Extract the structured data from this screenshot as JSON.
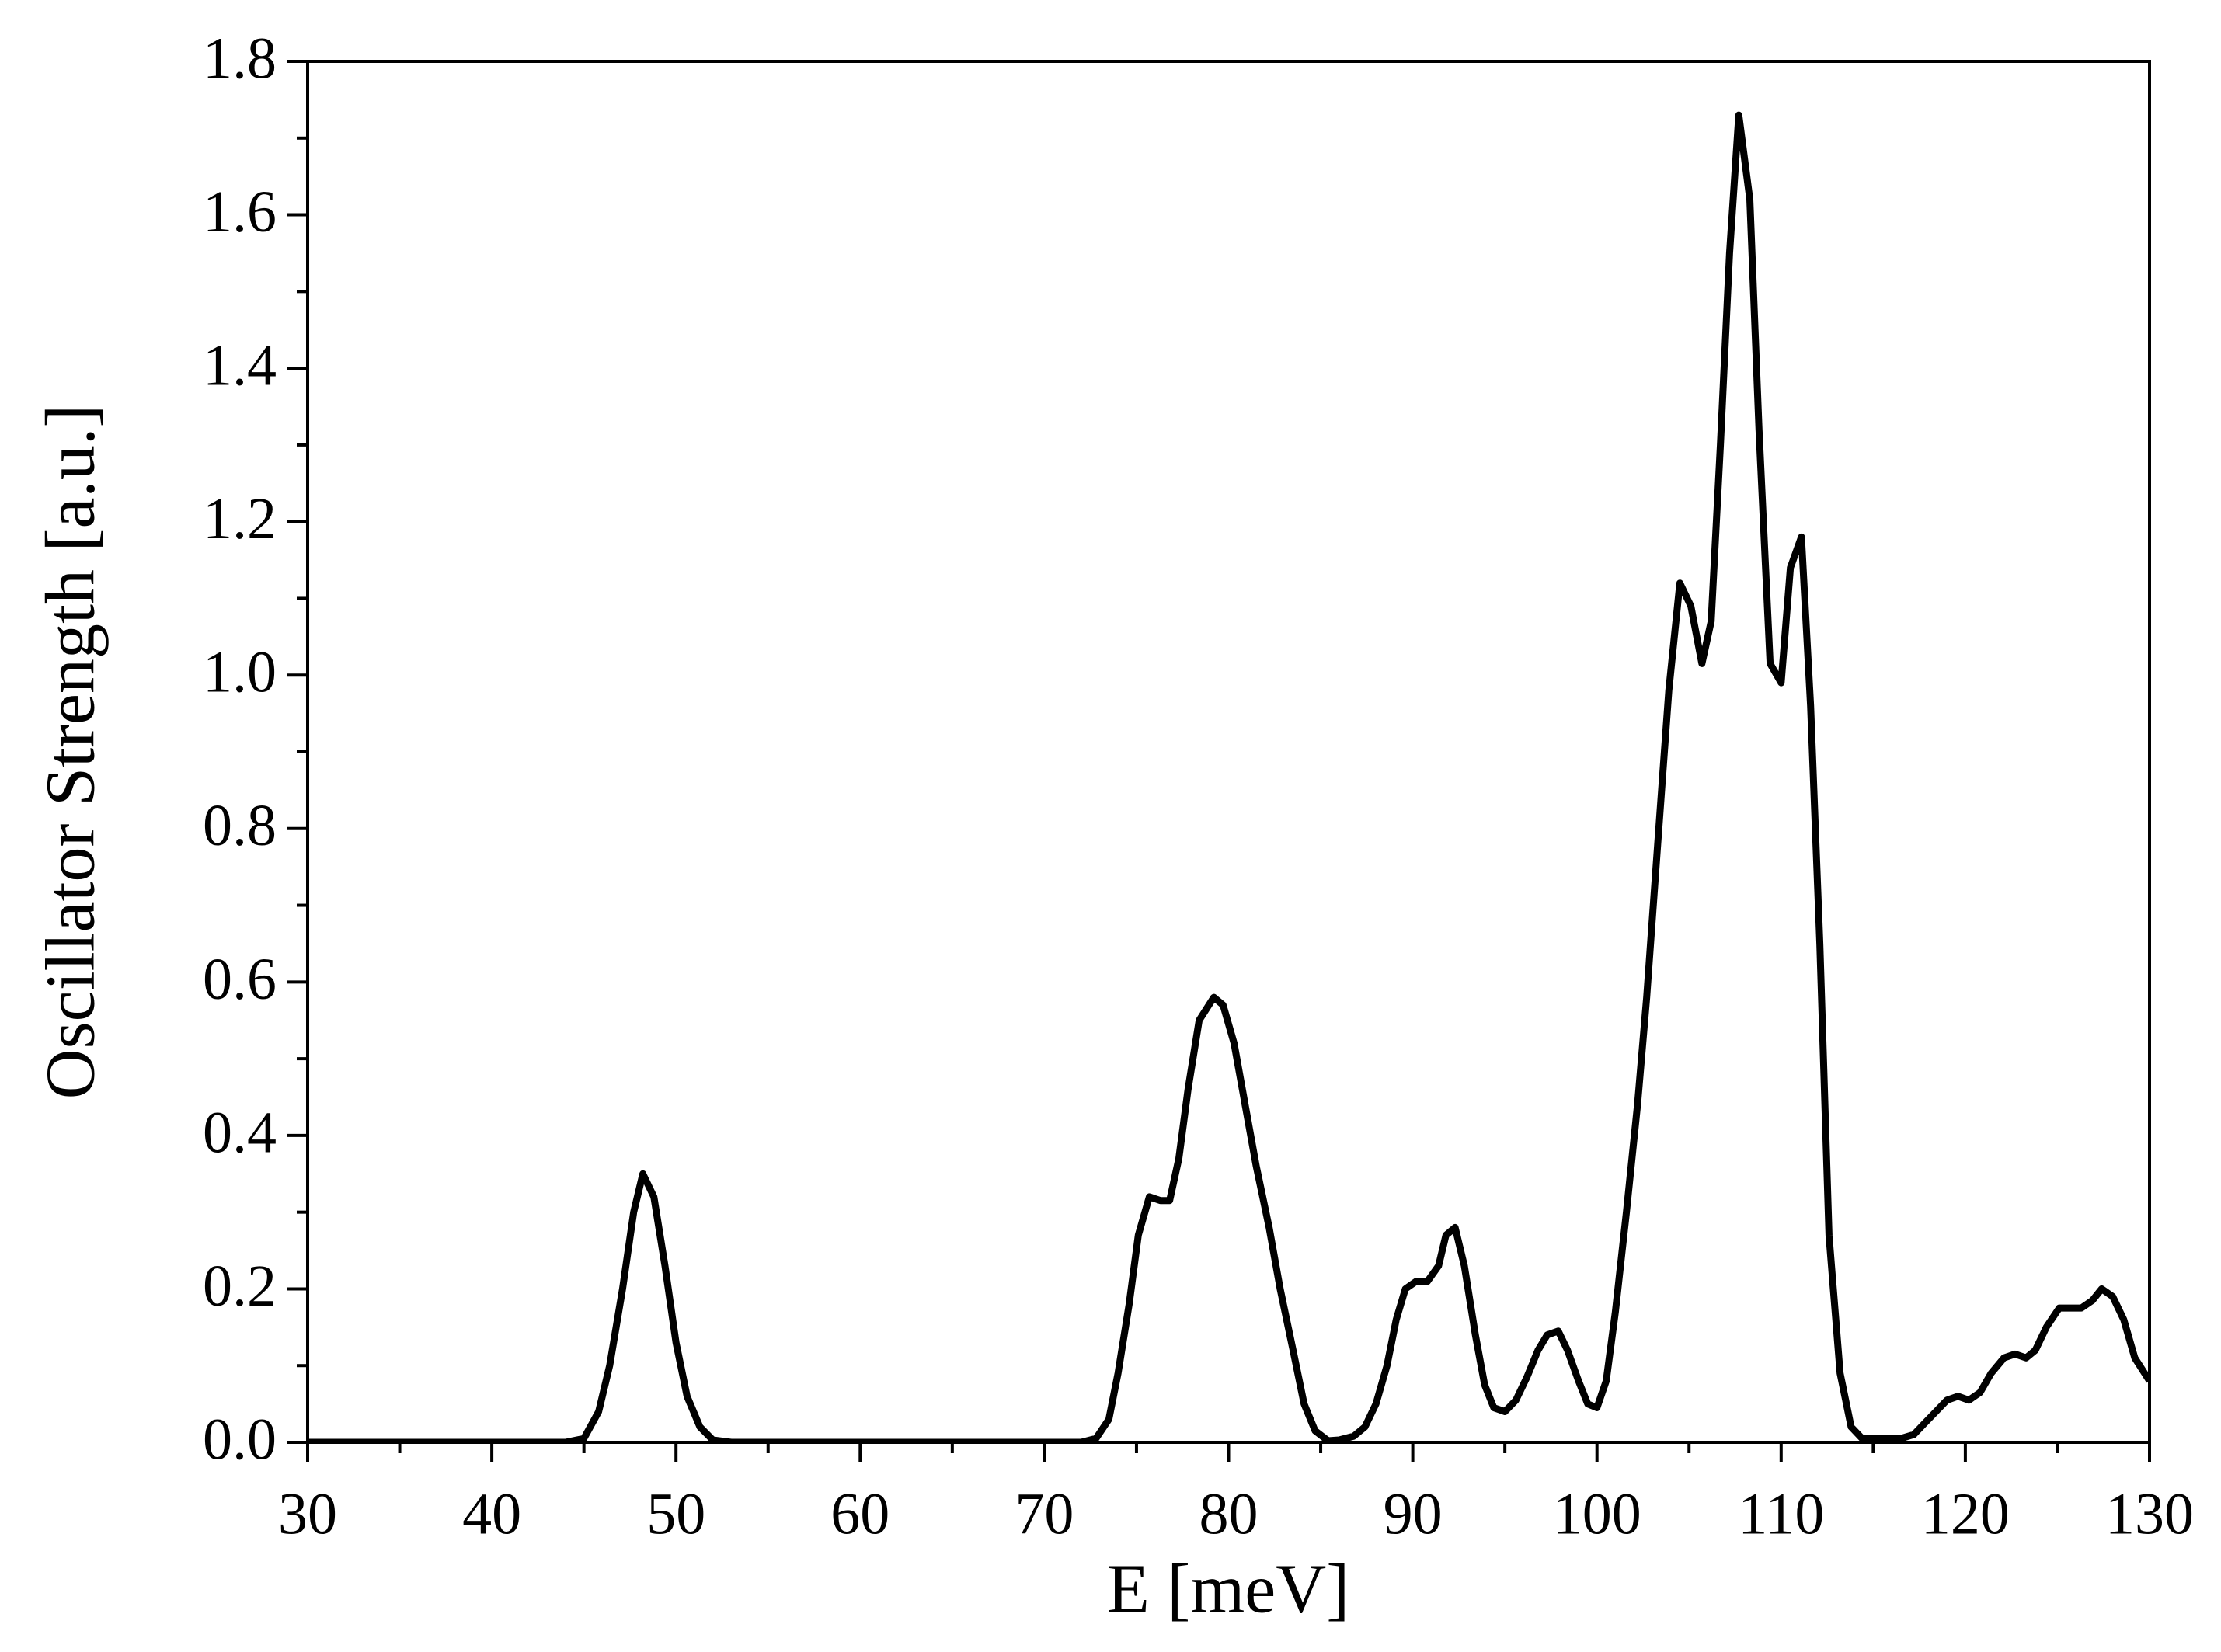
{
  "chart_data": {
    "type": "line",
    "xlabel": "E [meV]",
    "ylabel": "Oscillator Strength [a.u.]",
    "xlim": [
      30,
      130
    ],
    "xticks": [
      30,
      40,
      50,
      60,
      70,
      80,
      90,
      100,
      110,
      120,
      130
    ],
    "ylim": [
      0,
      1.8
    ],
    "yticks": [
      {
        "value": 0,
        "label": "0.0"
      },
      0.2,
      0.4,
      0.6,
      0.8,
      {
        "value": 1,
        "label": "1.0"
      },
      1.2,
      1.4,
      1.6,
      1.8
    ],
    "series": [
      {
        "color": "#000000",
        "x": [
          30,
          44,
          45,
          45.8,
          46.4,
          47.1,
          47.7,
          48.2,
          48.8,
          49.4,
          50,
          50.6,
          51.3,
          52,
          53,
          68,
          72,
          72.8,
          73.5,
          74,
          74.6,
          75.1,
          75.7,
          76.3,
          76.8,
          77.3,
          77.8,
          78.4,
          79.2,
          79.7,
          80.3,
          80.9,
          81.5,
          82.2,
          82.8,
          83.5,
          84.1,
          84.7,
          85.4,
          86,
          86.8,
          87.4,
          88,
          88.6,
          89.1,
          89.6,
          90.2,
          90.8,
          91.4,
          91.8,
          92.3,
          92.8,
          93.4,
          93.9,
          94.4,
          95,
          95.6,
          96.2,
          96.8,
          97.3,
          97.9,
          98.4,
          99,
          99.5,
          100,
          100.5,
          101,
          101.6,
          102.2,
          102.7,
          103.3,
          103.9,
          104.5,
          105.1,
          105.7,
          106.2,
          106.7,
          107.2,
          107.7,
          108.3,
          108.8,
          109.4,
          110,
          110.5,
          111.1,
          111.6,
          112.1,
          112.6,
          113.2,
          113.8,
          114.4,
          115.3,
          116.5,
          117.2,
          117.8,
          118.4,
          119,
          119.6,
          120.2,
          120.8,
          121.4,
          122.1,
          122.7,
          123.3,
          123.8,
          124.4,
          125.1,
          125.7,
          126.3,
          126.9,
          127.4,
          128,
          128.6,
          129.2,
          130
        ],
        "values": [
          0,
          0,
          0.005,
          0.04,
          0.1,
          0.2,
          0.3,
          0.35,
          0.32,
          0.23,
          0.13,
          0.06,
          0.02,
          0.003,
          0,
          0,
          0,
          0.005,
          0.03,
          0.09,
          0.18,
          0.27,
          0.32,
          0.315,
          0.315,
          0.37,
          0.46,
          0.55,
          0.58,
          0.57,
          0.52,
          0.44,
          0.36,
          0.28,
          0.2,
          0.12,
          0.05,
          0.015,
          0.002,
          0.003,
          0.008,
          0.02,
          0.05,
          0.1,
          0.16,
          0.2,
          0.21,
          0.21,
          0.23,
          0.27,
          0.28,
          0.23,
          0.14,
          0.075,
          0.045,
          0.04,
          0.055,
          0.085,
          0.12,
          0.14,
          0.145,
          0.12,
          0.08,
          0.05,
          0.045,
          0.08,
          0.17,
          0.3,
          0.44,
          0.58,
          0.78,
          0.98,
          1.12,
          1.09,
          1.015,
          1.07,
          1.3,
          1.55,
          1.73,
          1.62,
          1.32,
          1.015,
          0.99,
          1.14,
          1.18,
          0.96,
          0.65,
          0.27,
          0.09,
          0.02,
          0.005,
          0.005,
          0.005,
          0.01,
          0.025,
          0.04,
          0.055,
          0.06,
          0.055,
          0.065,
          0.09,
          0.11,
          0.115,
          0.11,
          0.12,
          0.15,
          0.175,
          0.175,
          0.175,
          0.185,
          0.2,
          0.19,
          0.16,
          0.11,
          0.08
        ]
      }
    ]
  }
}
